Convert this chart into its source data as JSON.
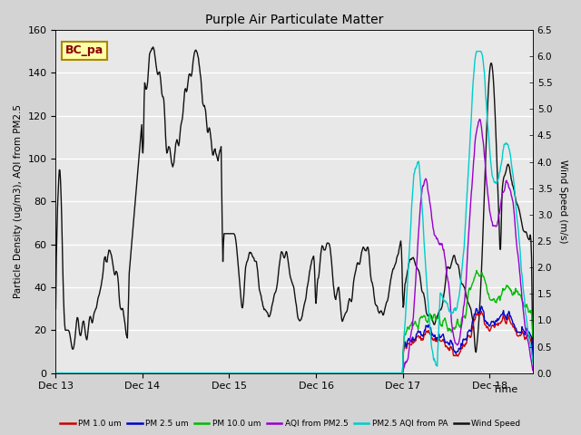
{
  "title": "Purple Air Particulate Matter",
  "ylabel_left": "Particle Density (ug/m3), AQI from PM2.5",
  "ylabel_right": "Wind Speed (m/s)",
  "xlabel": "Time",
  "ylim_left": [
    0,
    160
  ],
  "ylim_right": [
    0,
    6.5
  ],
  "bg_color": "#d3d3d3",
  "plot_bg_color": "#e8e8e8",
  "annotation_text": "BC_pa",
  "xtick_labels": [
    "Dec 13",
    "Dec 14",
    "Dec 15",
    "Dec 16",
    "Dec 17",
    "Dec 18"
  ],
  "xtick_positions": [
    0,
    24,
    48,
    72,
    96,
    120
  ],
  "yticks_left": [
    0,
    20,
    40,
    60,
    80,
    100,
    120,
    140,
    160
  ],
  "yticks_right": [
    0.0,
    0.5,
    1.0,
    1.5,
    2.0,
    2.5,
    3.0,
    3.5,
    4.0,
    4.5,
    5.0,
    5.5,
    6.0,
    6.5
  ],
  "line_colors": {
    "pm1": "#cc0000",
    "pm25": "#0000cc",
    "pm10": "#00bb00",
    "aqi": "#9900cc",
    "pa_aqi": "#00cccc",
    "wind": "#111111"
  },
  "legend_labels": [
    "PM 1.0 um",
    "PM 2.5 um",
    "PM 10.0 um",
    "AQI from PM2.5",
    "PM2.5 AQI from PA",
    "Wind Speed"
  ]
}
